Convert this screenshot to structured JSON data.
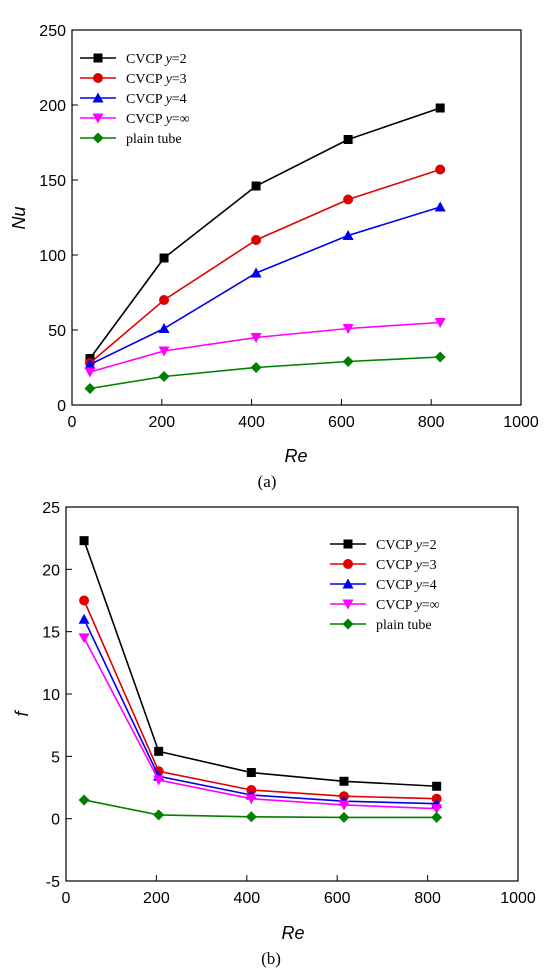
{
  "chart_data": [
    {
      "type": "line",
      "panel_label": "(a)",
      "xlabel": "Re",
      "ylabel": "Nu",
      "xlim": [
        0,
        1000
      ],
      "ylim": [
        0,
        250
      ],
      "xticks": [
        0,
        200,
        400,
        600,
        800,
        1000
      ],
      "yticks": [
        0,
        50,
        100,
        150,
        200,
        250
      ],
      "legend_position": "top-left",
      "x": [
        40,
        205,
        410,
        615,
        820
      ],
      "series": [
        {
          "name": "CVCP y=2",
          "values": [
            31,
            98,
            146,
            177,
            198
          ],
          "color": "#000000",
          "marker": "square"
        },
        {
          "name": "CVCP y=3",
          "values": [
            28,
            70,
            110,
            137,
            157
          ],
          "color": "#e00000",
          "marker": "circle"
        },
        {
          "name": "CVCP y=4",
          "values": [
            27,
            51,
            88,
            113,
            132
          ],
          "color": "#0000ee",
          "marker": "triangle-up"
        },
        {
          "name": "CVCP y=∞",
          "values": [
            22,
            36,
            45,
            51,
            55
          ],
          "color": "#ff00ff",
          "marker": "triangle-down"
        },
        {
          "name": "plain tube",
          "values": [
            11,
            19,
            25,
            29,
            32
          ],
          "color": "#008000",
          "marker": "diamond"
        }
      ]
    },
    {
      "type": "line",
      "panel_label": "(b)",
      "xlabel": "Re",
      "ylabel": "f",
      "xlim": [
        0,
        1000
      ],
      "ylim": [
        -5,
        25
      ],
      "xticks": [
        0,
        200,
        400,
        600,
        800,
        1000
      ],
      "yticks": [
        -5,
        0,
        5,
        10,
        15,
        20,
        25
      ],
      "legend_position": "top-right",
      "x": [
        40,
        205,
        410,
        615,
        820
      ],
      "series": [
        {
          "name": "CVCP y=2",
          "values": [
            22.3,
            5.4,
            3.7,
            3.0,
            2.6
          ],
          "color": "#000000",
          "marker": "square"
        },
        {
          "name": "CVCP y=3",
          "values": [
            17.5,
            3.8,
            2.3,
            1.8,
            1.6
          ],
          "color": "#e00000",
          "marker": "circle"
        },
        {
          "name": "CVCP y=4",
          "values": [
            16.0,
            3.4,
            1.9,
            1.4,
            1.2
          ],
          "color": "#0000ee",
          "marker": "triangle-up"
        },
        {
          "name": "CVCP y=∞",
          "values": [
            14.5,
            3.1,
            1.6,
            1.1,
            0.8
          ],
          "color": "#ff00ff",
          "marker": "triangle-down"
        },
        {
          "name": "plain tube",
          "values": [
            1.5,
            0.3,
            0.15,
            0.1,
            0.1
          ],
          "color": "#008000",
          "marker": "diamond"
        }
      ]
    }
  ]
}
